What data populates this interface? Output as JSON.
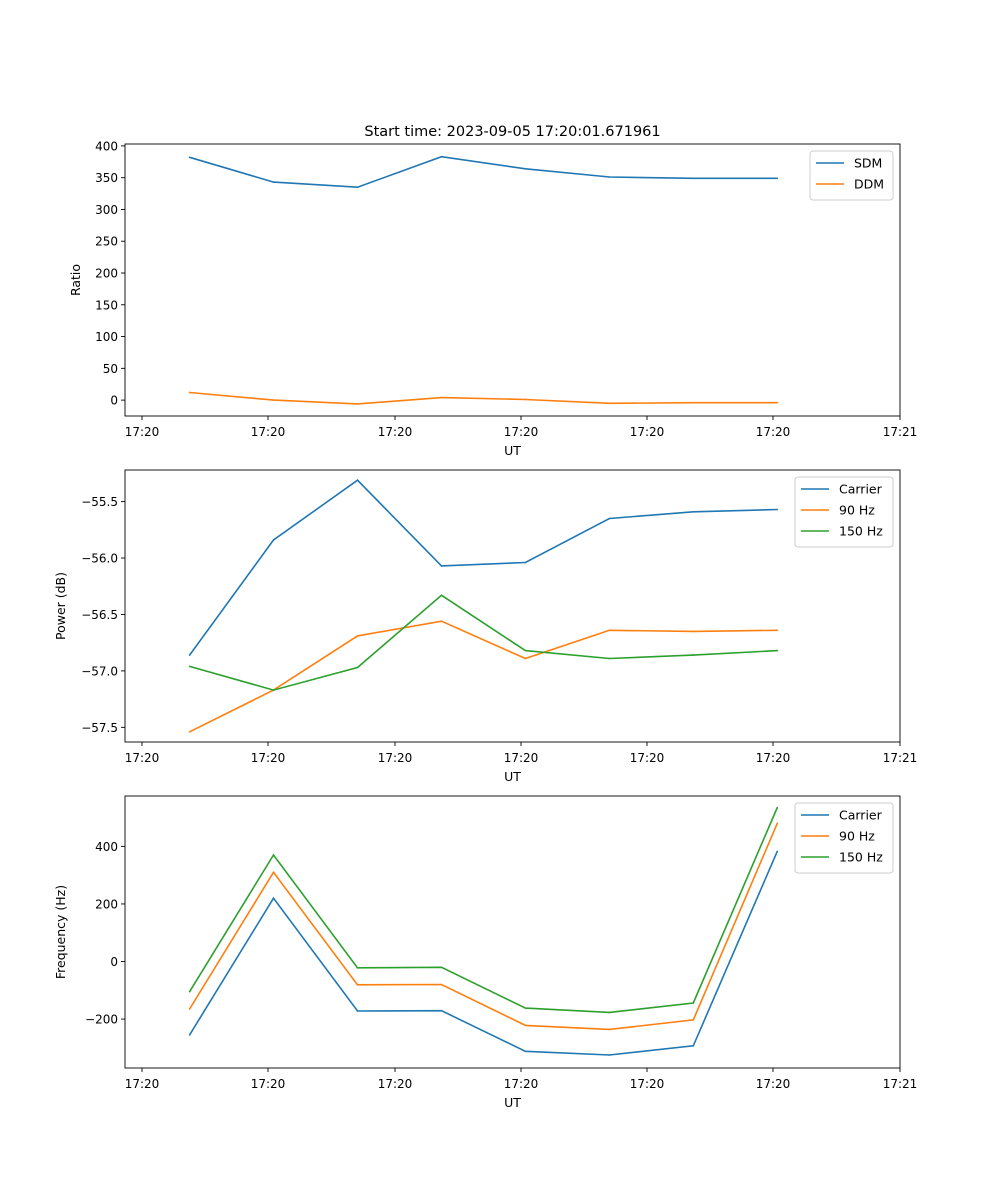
{
  "figure_title": "Start time: 2023-09-05 17:20:01.671961",
  "chart_data": [
    {
      "type": "line",
      "title": "Start time: 2023-09-05 17:20:01.671961",
      "xlabel": "UT",
      "ylabel": "Ratio",
      "x_ticks": [
        "17:20",
        "17:20",
        "17:20",
        "17:20",
        "17:20",
        "17:20",
        "17:21"
      ],
      "y_ticks": [
        0,
        50,
        100,
        150,
        200,
        250,
        300,
        350,
        400
      ],
      "ylim": [
        -25,
        403
      ],
      "legend_position": "top-right",
      "x": [
        0.5,
        1.15,
        1.8,
        2.45,
        3.1,
        3.75,
        4.4,
        5.05
      ],
      "series": [
        {
          "name": "SDM",
          "color": "#1f77b4",
          "values": [
            382,
            343,
            335,
            383,
            364,
            351,
            349,
            349
          ]
        },
        {
          "name": "DDM",
          "color": "#ff7f0e",
          "values": [
            12,
            0,
            -6,
            4,
            1,
            -5,
            -4,
            -4
          ]
        }
      ]
    },
    {
      "type": "line",
      "title": "",
      "xlabel": "UT",
      "ylabel": "Power (dB)",
      "x_ticks": [
        "17:20",
        "17:20",
        "17:20",
        "17:20",
        "17:20",
        "17:20",
        "17:21"
      ],
      "y_ticks": [
        "−55.5",
        "−56.0",
        "−56.5",
        "−57.0",
        "−57.5"
      ],
      "y_tick_values": [
        -55.5,
        -56.0,
        -56.5,
        -57.0,
        -57.5
      ],
      "ylim": [
        -57.63,
        -55.22
      ],
      "legend_position": "top-right",
      "x": [
        0.5,
        1.15,
        1.8,
        2.45,
        3.1,
        3.75,
        4.4,
        5.05
      ],
      "series": [
        {
          "name": "Carrier",
          "color": "#1f77b4",
          "values": [
            -56.86,
            -55.84,
            -55.31,
            -56.07,
            -56.04,
            -55.65,
            -55.59,
            -55.57
          ]
        },
        {
          "name": "90 Hz",
          "color": "#ff7f0e",
          "values": [
            -57.54,
            -57.17,
            -56.69,
            -56.56,
            -56.89,
            -56.64,
            -56.65,
            -56.64
          ]
        },
        {
          "name": "150 Hz",
          "color": "#2ca02c",
          "values": [
            -56.96,
            -57.17,
            -56.97,
            -56.33,
            -56.82,
            -56.89,
            -56.86,
            -56.82
          ]
        }
      ]
    },
    {
      "type": "line",
      "title": "",
      "xlabel": "UT",
      "ylabel": "Frequency (Hz)",
      "x_ticks": [
        "17:20",
        "17:20",
        "17:20",
        "17:20",
        "17:20",
        "17:20",
        "17:21"
      ],
      "y_ticks": [
        400,
        200,
        0,
        -200
      ],
      "y_tick_labels": [
        "400",
        "200",
        "0",
        "−200"
      ],
      "ylim": [
        -370,
        575
      ],
      "legend_position": "top-right",
      "x": [
        0.5,
        1.15,
        1.8,
        2.45,
        3.1,
        3.75,
        4.4,
        5.05
      ],
      "series": [
        {
          "name": "Carrier",
          "color": "#1f77b4",
          "values": [
            -255,
            220,
            -172,
            -171,
            -312,
            -325,
            -293,
            383
          ]
        },
        {
          "name": "90 Hz",
          "color": "#ff7f0e",
          "values": [
            -165,
            310,
            -81,
            -80,
            -222,
            -236,
            -203,
            480
          ]
        },
        {
          "name": "150 Hz",
          "color": "#2ca02c",
          "values": [
            -105,
            370,
            -22,
            -20,
            -162,
            -177,
            -144,
            535
          ]
        }
      ]
    }
  ]
}
